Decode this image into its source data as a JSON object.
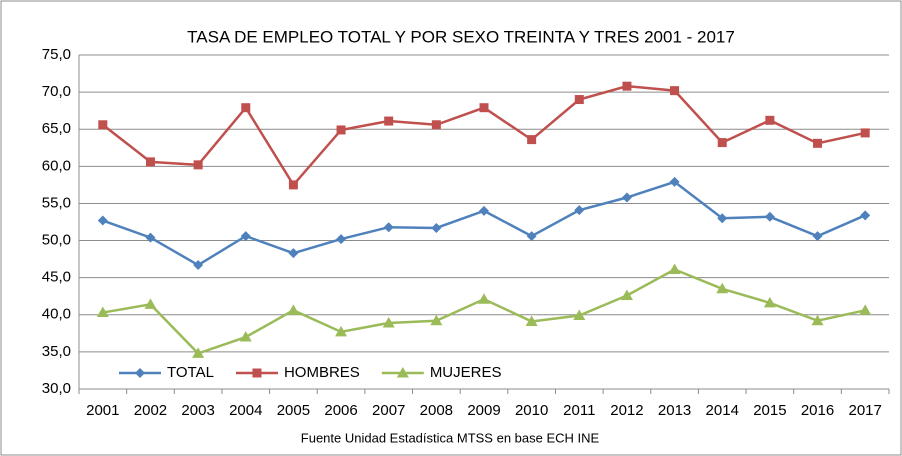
{
  "chart_data": {
    "type": "line",
    "title": "TASA DE EMPLEO TOTAL Y POR SEXO TREINTA Y TRES 2001 - 2017",
    "caption": "Fuente Unidad Estadística MTSS en base ECH INE",
    "categories": [
      "2001",
      "2002",
      "2003",
      "2004",
      "2005",
      "2006",
      "2007",
      "2008",
      "2009",
      "2010",
      "2011",
      "2012",
      "2013",
      "2014",
      "2015",
      "2016",
      "2017"
    ],
    "series": [
      {
        "name": "TOTAL",
        "color": "#4f81bd",
        "marker": "diamond",
        "values": [
          52.7,
          50.4,
          46.7,
          50.6,
          48.3,
          50.2,
          51.8,
          51.7,
          54.0,
          50.6,
          54.1,
          55.8,
          57.9,
          53.0,
          53.2,
          50.6,
          53.4
        ]
      },
      {
        "name": "HOMBRES",
        "color": "#c0504d",
        "marker": "square",
        "values": [
          65.6,
          60.6,
          60.2,
          67.9,
          57.5,
          64.9,
          66.1,
          65.6,
          67.9,
          63.6,
          69.0,
          70.8,
          70.2,
          63.2,
          66.2,
          63.1,
          64.5
        ]
      },
      {
        "name": "MUJERES",
        "color": "#9bbb59",
        "marker": "triangle",
        "values": [
          40.3,
          41.4,
          34.8,
          37.0,
          40.6,
          37.7,
          38.9,
          39.2,
          42.1,
          39.1,
          39.9,
          42.6,
          46.1,
          43.5,
          41.6,
          39.2,
          40.6
        ]
      }
    ],
    "ylim": [
      30,
      75
    ],
    "yticks": [
      {
        "value": 30,
        "label": "30,0"
      },
      {
        "value": 35,
        "label": "35,0"
      },
      {
        "value": 40,
        "label": "40,0"
      },
      {
        "value": 45,
        "label": "45,0"
      },
      {
        "value": 50,
        "label": "50,0"
      },
      {
        "value": 55,
        "label": "55,0"
      },
      {
        "value": 60,
        "label": "60,0"
      },
      {
        "value": 65,
        "label": "65,0"
      },
      {
        "value": 70,
        "label": "70,0"
      },
      {
        "value": 75,
        "label": "75,0"
      }
    ],
    "grid": true,
    "legend": "lower left"
  }
}
